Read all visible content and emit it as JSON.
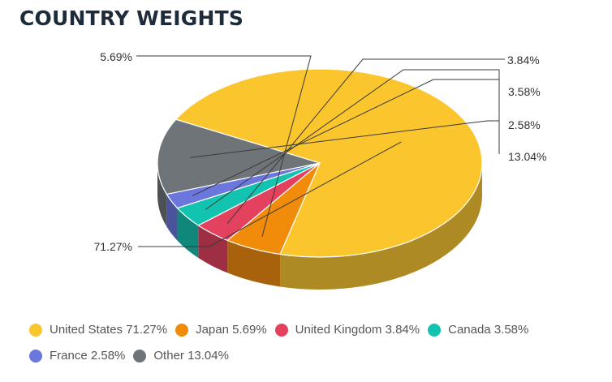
{
  "header": {
    "title": "COUNTRY WEIGHTS"
  },
  "chart_data": {
    "type": "pie",
    "title": "COUNTRY WEIGHTS",
    "style": "3d",
    "categories": [
      "United States",
      "Japan",
      "United Kingdom",
      "Canada",
      "France",
      "Other"
    ],
    "values": [
      71.27,
      5.69,
      3.84,
      3.58,
      2.58,
      13.04
    ],
    "value_labels": [
      "71.27%",
      "5.69%",
      "3.84%",
      "3.58%",
      "2.58%",
      "13.04%"
    ],
    "colors": [
      "#fbc52d",
      "#f18b0a",
      "#e4415e",
      "#12c3b0",
      "#6b77dc",
      "#6e7478"
    ],
    "side_colors": [
      "#ad8a23",
      "#a8620c",
      "#9e2e43",
      "#0f877b",
      "#4b539a",
      "#4d5154"
    ],
    "legend": {
      "placement": "bottom",
      "items": [
        {
          "label": "United States 71.27%",
          "color": "#fbc52d"
        },
        {
          "label": "Japan 5.69%",
          "color": "#f18b0a"
        },
        {
          "label": "United Kingdom 3.84%",
          "color": "#e4415e"
        },
        {
          "label": "Canada 3.58%",
          "color": "#12c3b0"
        },
        {
          "label": "France 2.58%",
          "color": "#6b77dc"
        },
        {
          "label": "Other 13.04%",
          "color": "#6e7478"
        }
      ]
    }
  }
}
